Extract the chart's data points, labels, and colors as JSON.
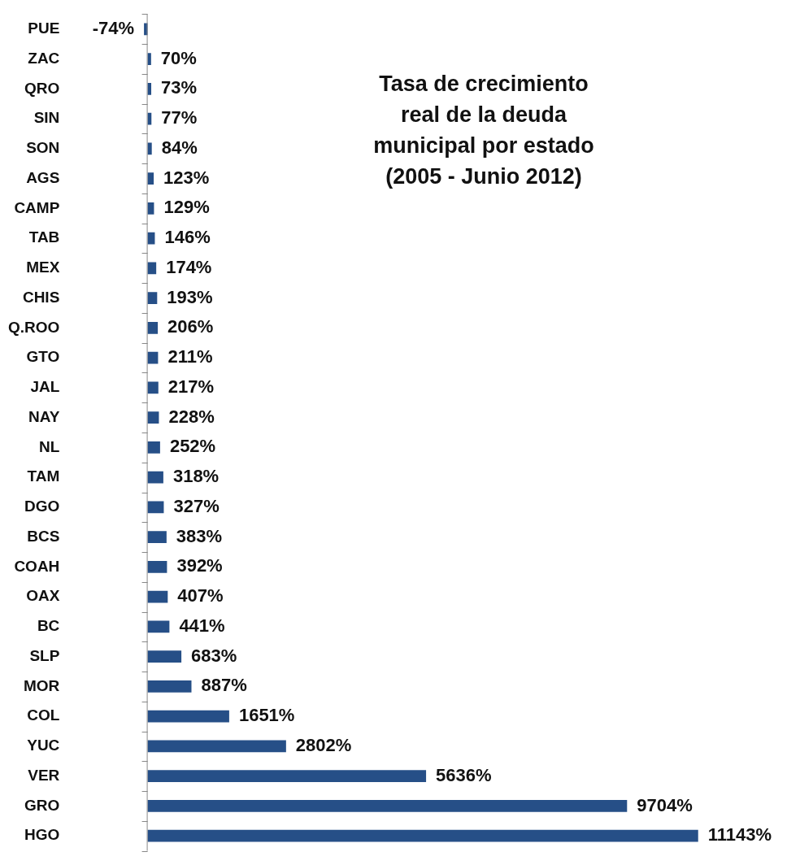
{
  "chart_data": {
    "type": "bar",
    "orientation": "horizontal",
    "title": "Tasa de crecimiento real de la deuda municipal por estado (2005 - Junio 2012)",
    "categories": [
      "PUE",
      "ZAC",
      "QRO",
      "SIN",
      "SON",
      "AGS",
      "CAMP",
      "TAB",
      "MEX",
      "CHIS",
      "Q.ROO",
      "GTO",
      "JAL",
      "NAY",
      "NL",
      "TAM",
      "DGO",
      "BCS",
      "COAH",
      "OAX",
      "BC",
      "SLP",
      "MOR",
      "COL",
      "YUC",
      "VER",
      "GRO",
      "HGO"
    ],
    "values": [
      -74,
      70,
      73,
      77,
      84,
      123,
      129,
      146,
      174,
      193,
      206,
      211,
      217,
      228,
      252,
      318,
      327,
      383,
      392,
      407,
      441,
      683,
      887,
      1651,
      2802,
      5636,
      9704,
      11143
    ],
    "value_labels": [
      "-74%",
      "70%",
      "73%",
      "77%",
      "84%",
      "123%",
      "129%",
      "146%",
      "174%",
      "193%",
      "206%",
      "211%",
      "217%",
      "228%",
      "252%",
      "318%",
      "327%",
      "383%",
      "392%",
      "407%",
      "441%",
      "683%",
      "887%",
      "1651%",
      "2802%",
      "5636%",
      "9704%",
      "11143%"
    ],
    "color": "#264f87",
    "grid": false,
    "legend": false
  }
}
